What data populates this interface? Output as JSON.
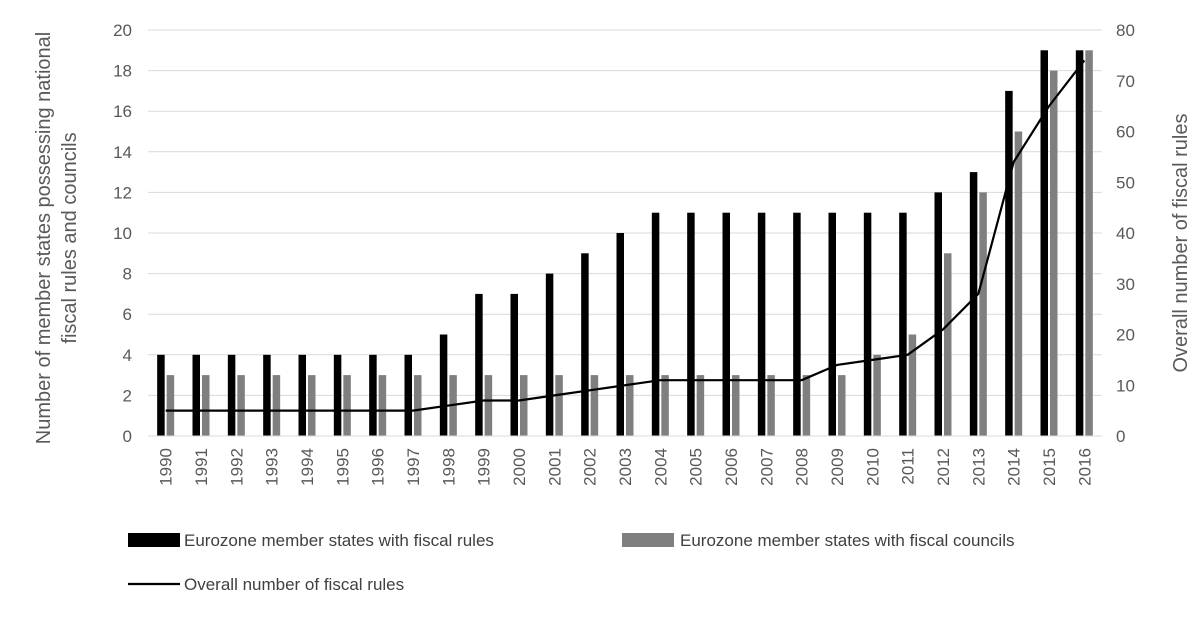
{
  "chart_data": {
    "type": "bar",
    "categories": [
      "1990",
      "1991",
      "1992",
      "1993",
      "1994",
      "1995",
      "1996",
      "1997",
      "1998",
      "1999",
      "2000",
      "2001",
      "2002",
      "2003",
      "2004",
      "2005",
      "2006",
      "2007",
      "2008",
      "2009",
      "2010",
      "2011",
      "2012",
      "2013",
      "2014",
      "2015",
      "2016"
    ],
    "series": [
      {
        "name": "Eurozone member states with fiscal rules",
        "type": "bar",
        "axis": "left",
        "color": "#000000",
        "values": [
          4,
          4,
          4,
          4,
          4,
          4,
          4,
          4,
          5,
          7,
          7,
          8,
          9,
          10,
          11,
          11,
          11,
          11,
          11,
          11,
          11,
          11,
          12,
          13,
          17,
          19,
          19
        ]
      },
      {
        "name": "Eurozone member states with fiscal councils",
        "type": "bar",
        "axis": "left",
        "color": "#7f7f7f",
        "values": [
          3,
          3,
          3,
          3,
          3,
          3,
          3,
          3,
          3,
          3,
          3,
          3,
          3,
          3,
          3,
          3,
          3,
          3,
          3,
          3,
          4,
          5,
          9,
          12,
          15,
          18,
          19
        ]
      },
      {
        "name": "Overall number of fiscal rules",
        "type": "line",
        "axis": "right",
        "color": "#000000",
        "values": [
          5,
          5,
          5,
          5,
          5,
          5,
          5,
          5,
          6,
          7,
          7,
          8,
          9,
          10,
          11,
          11,
          11,
          11,
          11,
          14,
          15,
          16,
          21,
          28,
          54,
          65,
          74
        ]
      }
    ],
    "ylabel": "Number of member states possessing national fiscal rules and councils",
    "y2label": "Overall number of fiscal rules",
    "ylim": [
      0,
      20
    ],
    "y2lim": [
      0,
      80
    ],
    "yticks": [
      "0",
      "2",
      "4",
      "6",
      "8",
      "10",
      "12",
      "14",
      "16",
      "18",
      "20"
    ],
    "y2ticks": [
      "0",
      "10",
      "20",
      "30",
      "40",
      "50",
      "60",
      "70",
      "80"
    ],
    "grid": true,
    "legend_position": "bottom"
  }
}
